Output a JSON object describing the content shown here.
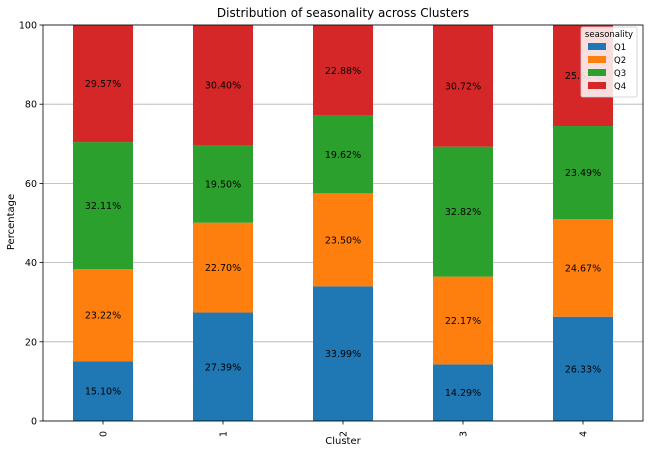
{
  "chart_data": {
    "type": "bar",
    "stacked": true,
    "title": "Distribution of seasonality across Clusters",
    "xlabel": "Cluster",
    "ylabel": "Percentage",
    "categories": [
      "0",
      "1",
      "2",
      "3",
      "4"
    ],
    "ylim": [
      0,
      100
    ],
    "yticks": [
      0,
      20,
      40,
      60,
      80,
      100
    ],
    "grid": "horizontal",
    "legend": {
      "title": "seasonality",
      "placement": "top-right"
    },
    "series": [
      {
        "name": "Q1",
        "color": "#1f77b4",
        "values": [
          15.1,
          27.39,
          33.99,
          14.29,
          26.33
        ],
        "labels": [
          "15.10%",
          "27.39%",
          "33.99%",
          "14.29%",
          "26.33%"
        ]
      },
      {
        "name": "Q2",
        "color": "#ff7f0e",
        "values": [
          23.22,
          22.7,
          23.5,
          22.17,
          24.67
        ],
        "labels": [
          "23.22%",
          "22.70%",
          "23.50%",
          "22.17%",
          "24.67%"
        ]
      },
      {
        "name": "Q3",
        "color": "#2ca02c",
        "values": [
          32.11,
          19.5,
          19.62,
          32.82,
          23.49
        ],
        "labels": [
          "32.11%",
          "19.50%",
          "19.62%",
          "32.82%",
          "23.49%"
        ]
      },
      {
        "name": "Q4",
        "color": "#d62728",
        "values": [
          29.57,
          30.4,
          22.88,
          30.72,
          25.51
        ],
        "labels": [
          "29.57%",
          "30.40%",
          "22.88%",
          "30.72%",
          "25.51%"
        ]
      }
    ]
  }
}
